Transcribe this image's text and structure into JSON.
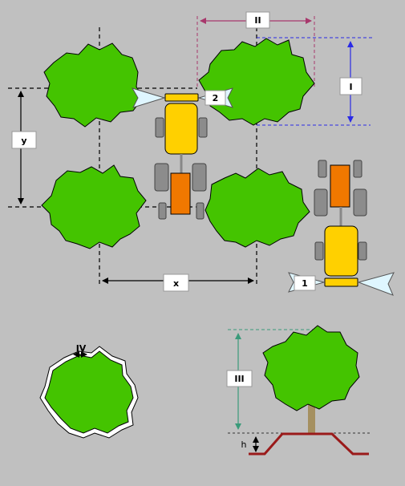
{
  "labels": {
    "x": "x",
    "y": "y",
    "I": "I",
    "II": "II",
    "III": "III",
    "IV": "IV",
    "h": "h",
    "nozzle_1": "1",
    "nozzle_2": "2"
  },
  "colors": {
    "background": "#c0c0c0",
    "tree_fill": "#44c400",
    "tree_outline": "#000000",
    "tractor_body": "#ffd000",
    "tractor_trailer": "#f07800",
    "wheel": "#8c8c8c",
    "spray": "#dff6ff",
    "dim_line": "#000000",
    "dim_I": "#2a2ae6",
    "dim_II": "#a8386c",
    "dim_III": "#3a9a7a",
    "ground_profile": "#9a1a1a",
    "trunk": "#a59060"
  },
  "icons": [
    "tree-canopy-icon",
    "tractor-icon",
    "sprayer-nozzle-icon",
    "ridge-profile-icon"
  ]
}
